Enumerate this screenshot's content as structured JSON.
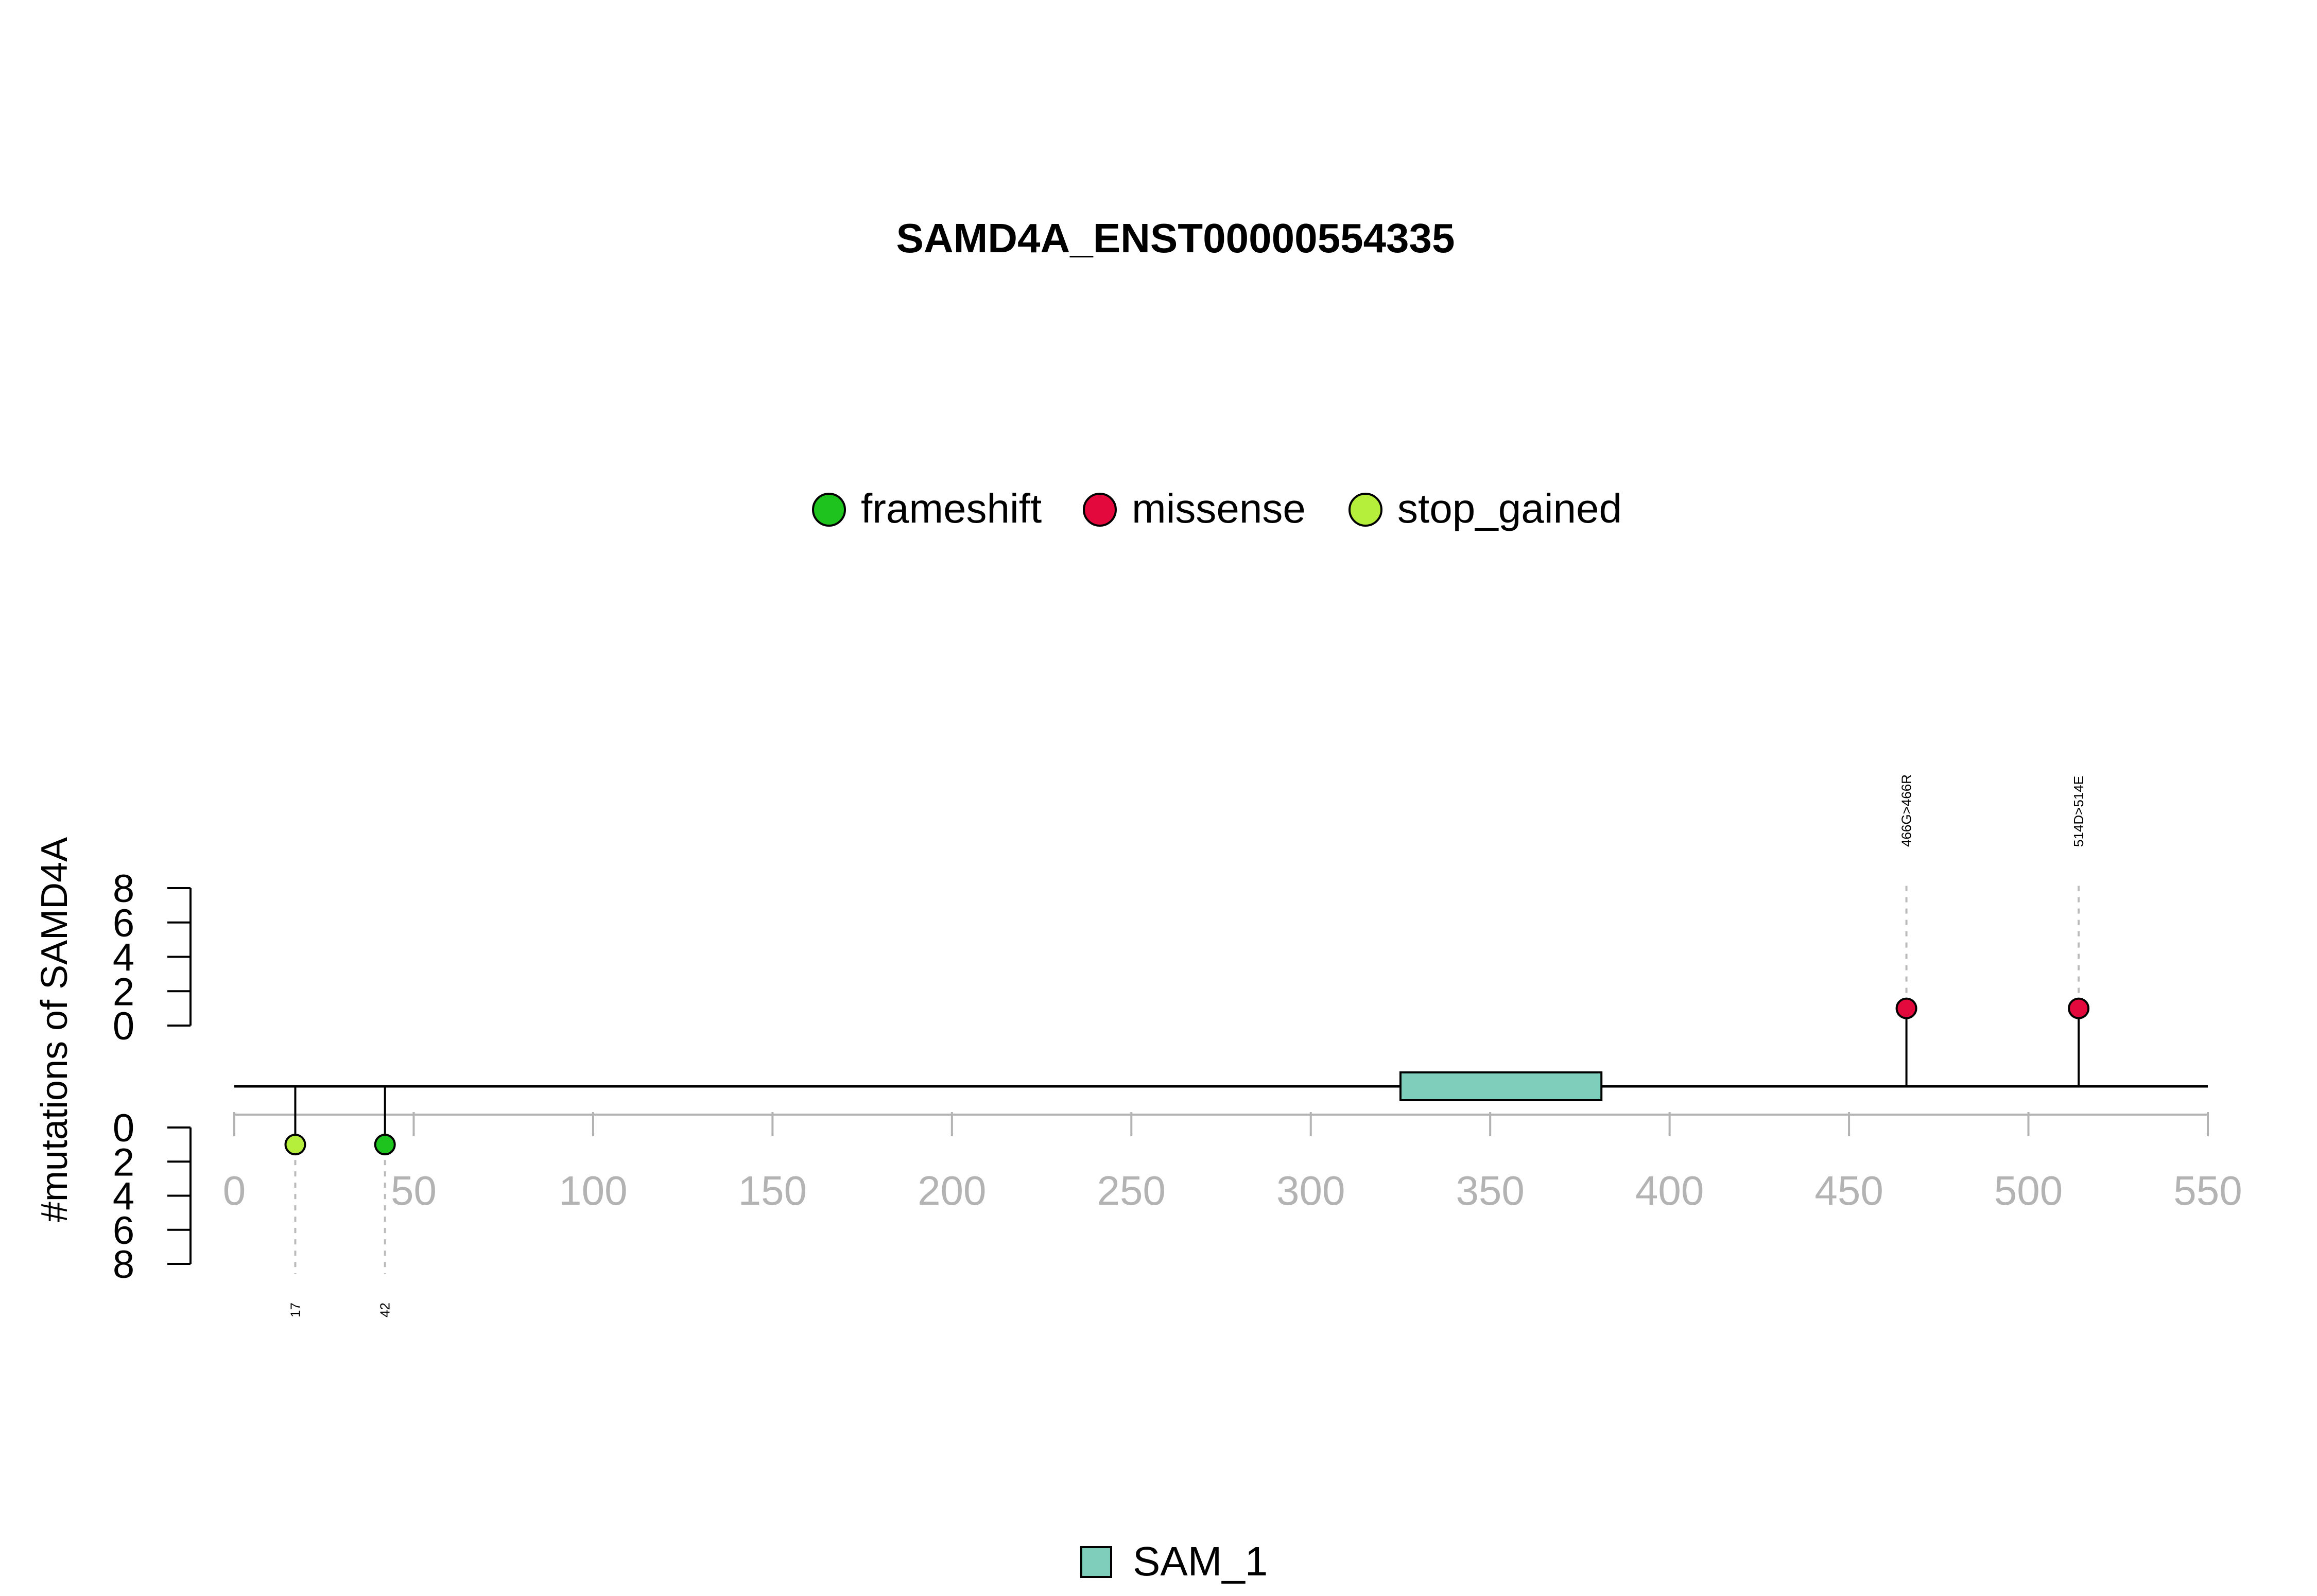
{
  "chart_data": {
    "type": "lollipop",
    "title": "SAMD4A_ENST00000554335",
    "ylabel": "#mutations of SAMD4A",
    "x_ticks": [
      0,
      50,
      100,
      150,
      200,
      250,
      300,
      350,
      400,
      450,
      500,
      550
    ],
    "xlim": [
      0,
      550
    ],
    "y_ticks": [
      0,
      2,
      4,
      6,
      8
    ],
    "ylim": [
      0,
      8
    ],
    "legend_top": [
      {
        "label": "frameshift",
        "color": "#1ec31e"
      },
      {
        "label": "missense",
        "color": "#e4093d"
      },
      {
        "label": "stop_gained",
        "color": "#b5ef3b"
      }
    ],
    "mutations_upper": [
      {
        "position": 466,
        "count": 1,
        "type": "missense",
        "label": "466G>466R"
      },
      {
        "position": 514,
        "count": 1,
        "type": "missense",
        "label": "514D>514E"
      }
    ],
    "mutations_lower": [
      {
        "position": 17,
        "count": 1,
        "type": "stop_gained",
        "label": "17"
      },
      {
        "position": 42,
        "count": 1,
        "type": "frameshift",
        "label": "42"
      }
    ],
    "domains": [
      {
        "name": "SAM_1",
        "start": 325,
        "end": 381,
        "color": "#7fcdbb"
      }
    ],
    "legend_bottom": [
      {
        "label": "SAM_1",
        "color": "#7fcdbb"
      }
    ]
  }
}
